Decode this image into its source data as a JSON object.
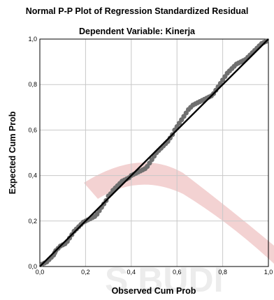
{
  "chart_data": {
    "type": "scatter",
    "title": "Normal P-P Plot of Regression Standardized Residual",
    "subtitle": "Dependent Variable: Kinerja",
    "xlabel": "Observed Cum Prob",
    "ylabel": "Expected Cum Prob",
    "xlim": [
      0,
      1
    ],
    "ylim": [
      0,
      1
    ],
    "grid": true,
    "x_ticks": [
      "0,0",
      "0,2",
      "0,4",
      "0,6",
      "0,8",
      "1,0"
    ],
    "y_ticks": [
      "0,0",
      "0,2",
      "0,4",
      "0,6",
      "0,8",
      "1,0"
    ],
    "reference_line": {
      "from": [
        0,
        0
      ],
      "to": [
        1,
        1
      ]
    },
    "points": [
      [
        0.01,
        0.01
      ],
      [
        0.02,
        0.015
      ],
      [
        0.03,
        0.02
      ],
      [
        0.04,
        0.03
      ],
      [
        0.05,
        0.04
      ],
      [
        0.06,
        0.05
      ],
      [
        0.065,
        0.06
      ],
      [
        0.07,
        0.07
      ],
      [
        0.08,
        0.08
      ],
      [
        0.09,
        0.09
      ],
      [
        0.1,
        0.095
      ],
      [
        0.11,
        0.1
      ],
      [
        0.12,
        0.11
      ],
      [
        0.13,
        0.125
      ],
      [
        0.14,
        0.14
      ],
      [
        0.15,
        0.155
      ],
      [
        0.16,
        0.165
      ],
      [
        0.17,
        0.175
      ],
      [
        0.18,
        0.185
      ],
      [
        0.19,
        0.195
      ],
      [
        0.2,
        0.2
      ],
      [
        0.21,
        0.205
      ],
      [
        0.22,
        0.21
      ],
      [
        0.23,
        0.215
      ],
      [
        0.24,
        0.22
      ],
      [
        0.25,
        0.23
      ],
      [
        0.26,
        0.245
      ],
      [
        0.27,
        0.26
      ],
      [
        0.28,
        0.275
      ],
      [
        0.29,
        0.29
      ],
      [
        0.3,
        0.31
      ],
      [
        0.31,
        0.32
      ],
      [
        0.32,
        0.335
      ],
      [
        0.33,
        0.345
      ],
      [
        0.34,
        0.355
      ],
      [
        0.35,
        0.365
      ],
      [
        0.36,
        0.375
      ],
      [
        0.37,
        0.38
      ],
      [
        0.38,
        0.385
      ],
      [
        0.39,
        0.39
      ],
      [
        0.4,
        0.4
      ],
      [
        0.41,
        0.405
      ],
      [
        0.42,
        0.41
      ],
      [
        0.43,
        0.415
      ],
      [
        0.44,
        0.42
      ],
      [
        0.45,
        0.425
      ],
      [
        0.46,
        0.43
      ],
      [
        0.47,
        0.44
      ],
      [
        0.48,
        0.455
      ],
      [
        0.49,
        0.47
      ],
      [
        0.5,
        0.485
      ],
      [
        0.51,
        0.5
      ],
      [
        0.52,
        0.51
      ],
      [
        0.53,
        0.52
      ],
      [
        0.54,
        0.53
      ],
      [
        0.55,
        0.54
      ],
      [
        0.56,
        0.55
      ],
      [
        0.57,
        0.565
      ],
      [
        0.58,
        0.58
      ],
      [
        0.59,
        0.6
      ],
      [
        0.6,
        0.615
      ],
      [
        0.61,
        0.63
      ],
      [
        0.62,
        0.645
      ],
      [
        0.63,
        0.66
      ],
      [
        0.64,
        0.675
      ],
      [
        0.65,
        0.69
      ],
      [
        0.66,
        0.7
      ],
      [
        0.67,
        0.71
      ],
      [
        0.68,
        0.715
      ],
      [
        0.69,
        0.72
      ],
      [
        0.7,
        0.725
      ],
      [
        0.71,
        0.73
      ],
      [
        0.72,
        0.735
      ],
      [
        0.73,
        0.74
      ],
      [
        0.74,
        0.745
      ],
      [
        0.75,
        0.75
      ],
      [
        0.76,
        0.76
      ],
      [
        0.77,
        0.775
      ],
      [
        0.78,
        0.79
      ],
      [
        0.79,
        0.805
      ],
      [
        0.8,
        0.82
      ],
      [
        0.81,
        0.835
      ],
      [
        0.82,
        0.85
      ],
      [
        0.83,
        0.86
      ],
      [
        0.84,
        0.87
      ],
      [
        0.85,
        0.88
      ],
      [
        0.86,
        0.89
      ],
      [
        0.87,
        0.895
      ],
      [
        0.88,
        0.9
      ],
      [
        0.89,
        0.905
      ],
      [
        0.9,
        0.91
      ],
      [
        0.91,
        0.92
      ],
      [
        0.92,
        0.93
      ],
      [
        0.93,
        0.94
      ],
      [
        0.94,
        0.95
      ],
      [
        0.95,
        0.96
      ],
      [
        0.96,
        0.97
      ],
      [
        0.97,
        0.98
      ],
      [
        0.98,
        0.985
      ],
      [
        0.99,
        0.99
      ]
    ]
  },
  "watermark": {
    "text": "S BUDI"
  }
}
